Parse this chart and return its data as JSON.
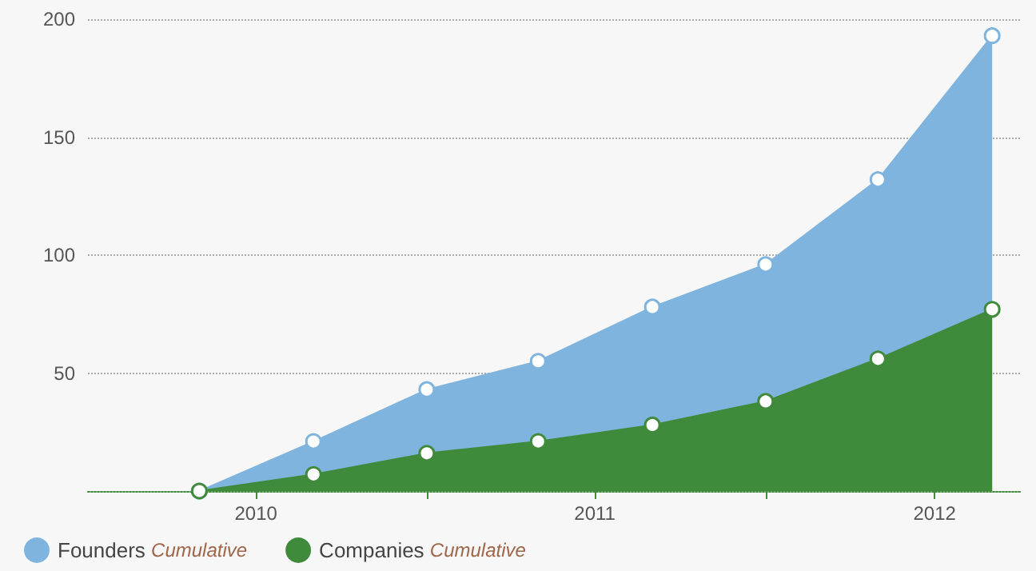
{
  "chart_data": {
    "type": "area",
    "x": [
      "2010-05-01",
      "2010-09-01",
      "2011-01-01",
      "2011-05-01",
      "2011-09-01",
      "2012-01-01",
      "2012-05-01",
      "2012-09-01"
    ],
    "series": [
      {
        "name": "Founders Cumulative",
        "color": "#7fb4de",
        "values": [
          0,
          21,
          43,
          55,
          78,
          96,
          132,
          193
        ]
      },
      {
        "name": "Companies Cumulative",
        "color": "#3f8a3b",
        "values": [
          0,
          7,
          16,
          21,
          28,
          38,
          56,
          77
        ]
      }
    ],
    "xlim": [
      "2010-01-01",
      "2012-10-01"
    ],
    "xticks": [
      {
        "value": "2010-07-01",
        "label": "2010"
      },
      {
        "value": "2011-01-01",
        "label": null
      },
      {
        "value": "2011-07-01",
        "label": "2011"
      },
      {
        "value": "2012-01-01",
        "label": null
      },
      {
        "value": "2012-07-01",
        "label": "2012"
      }
    ],
    "ylim": [
      0,
      200
    ],
    "yticks": [
      50,
      100,
      150,
      200
    ],
    "grid": "y",
    "legend": "bottom left",
    "marker": "circle"
  }
}
